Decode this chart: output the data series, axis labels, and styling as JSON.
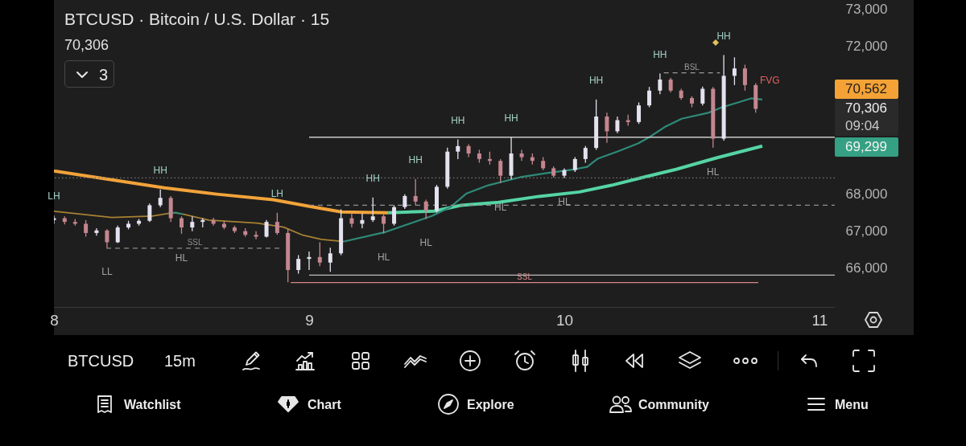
{
  "chart_data": {
    "type": "candlestick",
    "title": "BTCUSD · Bitcoin / U.S. Dollar · 15",
    "subtitle": "70,306",
    "x": [
      8,
      8.042,
      8.083,
      8.125,
      8.167,
      8.208,
      8.25,
      8.292,
      8.333,
      8.375,
      8.417,
      8.458,
      8.5,
      8.542,
      8.583,
      8.625,
      8.667,
      8.708,
      8.75,
      8.792,
      8.833,
      8.875,
      8.917,
      8.958,
      9,
      9.042,
      9.083,
      9.125,
      9.167,
      9.208,
      9.25,
      9.292,
      9.333,
      9.375,
      9.417,
      9.458,
      9.5,
      9.542,
      9.583,
      9.625,
      9.667,
      9.708,
      9.75,
      9.792,
      9.833,
      9.875,
      9.917,
      9.958,
      10,
      10.042,
      10.083,
      10.125,
      10.167,
      10.208,
      10.25,
      10.292,
      10.333,
      10.375,
      10.417,
      10.458,
      10.5,
      10.542,
      10.583,
      10.625,
      10.667,
      10.708,
      10.75
    ],
    "ohlc": [
      [
        67300,
        67420,
        67200,
        67350
      ],
      [
        67350,
        67400,
        67180,
        67250
      ],
      [
        67250,
        67330,
        67150,
        67200
      ],
      [
        67200,
        67300,
        66850,
        66950
      ],
      [
        66950,
        67080,
        66880,
        67020
      ],
      [
        67020,
        67050,
        66560,
        66700
      ],
      [
        66700,
        67150,
        66680,
        67100
      ],
      [
        67100,
        67280,
        67050,
        67200
      ],
      [
        67200,
        67330,
        67150,
        67280
      ],
      [
        67280,
        67750,
        67250,
        67700
      ],
      [
        67700,
        68130,
        67650,
        67900
      ],
      [
        67900,
        67950,
        67250,
        67350
      ],
      [
        67350,
        67400,
        66930,
        67100
      ],
      [
        67100,
        67400,
        67000,
        67250
      ],
      [
        67250,
        67350,
        67100,
        67300
      ],
      [
        67300,
        67360,
        67150,
        67200
      ],
      [
        67200,
        67280,
        67050,
        67100
      ],
      [
        67100,
        67150,
        66950,
        67000
      ],
      [
        67000,
        67080,
        66850,
        66900
      ],
      [
        66900,
        67000,
        66780,
        66850
      ],
      [
        66850,
        67300,
        66830,
        67250
      ],
      [
        67250,
        67500,
        66900,
        66950
      ],
      [
        66950,
        67050,
        65620,
        65950
      ],
      [
        65950,
        66350,
        65850,
        66250
      ],
      [
        66250,
        66450,
        65950,
        66300
      ],
      [
        66300,
        66700,
        66050,
        66150
      ],
      [
        66150,
        66550,
        65900,
        66400
      ],
      [
        66400,
        67590,
        66350,
        67350
      ],
      [
        67350,
        67500,
        67100,
        67200
      ],
      [
        67200,
        67480,
        67080,
        67300
      ],
      [
        67300,
        67910,
        67250,
        67400
      ],
      [
        67400,
        67450,
        66940,
        67200
      ],
      [
        67200,
        67700,
        67150,
        67650
      ],
      [
        67650,
        68000,
        67600,
        67950
      ],
      [
        67950,
        68410,
        67700,
        67800
      ],
      [
        67800,
        67850,
        67330,
        67550
      ],
      [
        67550,
        68250,
        67500,
        68200
      ],
      [
        68200,
        69260,
        68150,
        69150
      ],
      [
        69150,
        69480,
        68950,
        69300
      ],
      [
        69300,
        69350,
        69000,
        69100
      ],
      [
        69100,
        69200,
        68850,
        68950
      ],
      [
        68950,
        69150,
        68800,
        68900
      ],
      [
        68900,
        68950,
        68300,
        68500
      ],
      [
        68500,
        69540,
        68400,
        69100
      ],
      [
        69100,
        69200,
        68900,
        69000
      ],
      [
        69000,
        69100,
        68800,
        68900
      ],
      [
        68900,
        69000,
        68650,
        68700
      ],
      [
        68700,
        68750,
        68450,
        68500
      ],
      [
        68500,
        68700,
        68440,
        68650
      ],
      [
        68650,
        69000,
        68600,
        68950
      ],
      [
        68950,
        69300,
        68850,
        69250
      ],
      [
        69250,
        70560,
        69200,
        70100
      ],
      [
        70100,
        70200,
        69390,
        69700
      ],
      [
        69700,
        70100,
        69650,
        70000
      ],
      [
        70000,
        70150,
        69850,
        69950
      ],
      [
        69950,
        70480,
        69900,
        70400
      ],
      [
        70400,
        70900,
        70350,
        70800
      ],
      [
        70800,
        71260,
        70700,
        71100
      ],
      [
        71100,
        71150,
        70750,
        70800
      ],
      [
        70800,
        70850,
        70550,
        70600
      ],
      [
        70600,
        70650,
        70350,
        70450
      ],
      [
        70450,
        70910,
        70400,
        70850
      ],
      [
        70850,
        70900,
        69260,
        69500
      ],
      [
        69500,
        71760,
        69450,
        71200
      ],
      [
        71200,
        71700,
        70950,
        71400
      ],
      [
        71400,
        71500,
        70800,
        70950
      ],
      [
        70950,
        71000,
        70200,
        70306
      ]
    ],
    "colors": [
      "#e4e1f0",
      "#c4868f",
      "#c4868f",
      "#c4868f",
      "#e4e1f0",
      "#c4868f",
      "#e4e1f0",
      "#e4e1f0",
      "#e4e1f0",
      "#e4e1f0",
      "#e4e1f0",
      "#c4868f",
      "#c4868f",
      "#e4e1f0",
      "#e4e1f0",
      "#c4868f",
      "#c4868f",
      "#c4868f",
      "#c4868f",
      "#c4868f",
      "#e4e1f0",
      "#c4868f",
      "#c4868f",
      "#e4e1f0",
      "#e4e1f0",
      "#c4868f",
      "#e4e1f0",
      "#e4e1f0",
      "#c4868f",
      "#e4e1f0",
      "#e4e1f0",
      "#c4868f",
      "#e4e1f0",
      "#e4e1f0",
      "#c4868f",
      "#c4868f",
      "#e4e1f0",
      "#e4e1f0",
      "#e4e1f0",
      "#c4868f",
      "#c4868f",
      "#c4868f",
      "#c4868f",
      "#e4e1f0",
      "#c4868f",
      "#c4868f",
      "#c4868f",
      "#c4868f",
      "#e4e1f0",
      "#e4e1f0",
      "#e4e1f0",
      "#e4e1f0",
      "#c4868f",
      "#e4e1f0",
      "#c4868f",
      "#e4e1f0",
      "#e4e1f0",
      "#e4e1f0",
      "#c4868f",
      "#c4868f",
      "#c4868f",
      "#e4e1f0",
      "#c4868f",
      "#e4e1f0",
      "#e4e1f0",
      "#c4868f",
      "#c4868f"
    ],
    "series": [
      {
        "type": "line",
        "color": "#f2a33a",
        "x": [
          8,
          8.227,
          8.433,
          8.638,
          8.859,
          9.001,
          9.127,
          9.31
        ],
        "values": [
          68630,
          68390,
          68170,
          68000,
          67850,
          67670,
          67520,
          67500
        ]
      },
      {
        "type": "line",
        "color": "#55d4a4",
        "x": [
          9.31,
          9.49,
          9.595,
          9.743,
          9.901,
          10.059,
          10.185,
          10.311,
          10.438,
          10.596,
          10.776
        ],
        "values": [
          67500,
          67540,
          67700,
          67780,
          67940,
          68060,
          68240,
          68460,
          68670,
          68980,
          69300
        ]
      },
      {
        "type": "line",
        "color": "#a88033",
        "x": [
          8,
          8.227,
          8.385,
          8.448
        ],
        "values": [
          67540,
          67370,
          67410,
          67480
        ]
      },
      {
        "type": "line",
        "color": "#3c8c6e",
        "x": [
          8.448,
          8.476,
          8.505
        ],
        "values": [
          67480,
          67500,
          67460
        ]
      },
      {
        "type": "line",
        "color": "#a88033",
        "x": [
          8.505,
          8.606,
          8.796,
          8.9,
          8.976,
          9.048,
          9.137
        ],
        "values": [
          67460,
          67300,
          67220,
          67110,
          66890,
          66780,
          66720
        ]
      },
      {
        "type": "line",
        "color": "#2f8a78",
        "x": [
          9.137,
          9.301,
          9.481,
          9.554,
          9.617,
          9.702,
          9.828,
          9.932,
          10.037,
          10.09,
          10.131,
          10.207,
          10.289,
          10.333,
          10.397,
          10.46,
          10.564,
          10.618,
          10.681,
          10.731,
          10.776
        ],
        "values": [
          66720,
          66980,
          67410,
          67650,
          68020,
          68240,
          68460,
          68570,
          68670,
          68740,
          68960,
          69150,
          69370,
          69540,
          69830,
          70040,
          70200,
          70350,
          70480,
          70590,
          70560
        ]
      },
      {
        "type": "line",
        "name": "SSL",
        "color": "#8c8c8c",
        "line_style": "dashed",
        "x": [
          8.205,
          8.9
        ],
        "values": [
          66540,
          66540
        ]
      },
      {
        "type": "line",
        "color": "#c9c9c9",
        "x": [
          9,
          11.06
        ],
        "values": [
          69540,
          69540
        ]
      },
      {
        "type": "line",
        "color": "#8f8f8f",
        "line_style": "dashed",
        "x": [
          9,
          11.06
        ],
        "values": [
          67700,
          67700
        ]
      },
      {
        "type": "line",
        "color": "#bcbcbc",
        "x": [
          9,
          11.06
        ],
        "values": [
          65810,
          65810
        ]
      },
      {
        "type": "line",
        "name": "SSL",
        "color": "#d9898a",
        "x": [
          8.928,
          10.76
        ],
        "values": [
          65610,
          65610
        ]
      },
      {
        "type": "line",
        "name": "BSL",
        "color": "#9a9a9a",
        "line_style": "dashed",
        "x": [
          10.39,
          10.61
        ],
        "values": [
          71280,
          71280
        ]
      }
    ],
    "xlim": [
      8,
      11.06
    ],
    "xticks": [
      8,
      9,
      10,
      11
    ],
    "ylim": [
      64950,
      73250
    ],
    "yticks": [
      {
        "value": 66000,
        "label": "66,000"
      },
      {
        "value": 67000,
        "label": "67,000"
      },
      {
        "value": 68000,
        "label": "68,000"
      },
      {
        "value": 72000,
        "label": "72,000"
      },
      {
        "value": 73000,
        "label": "73,000"
      }
    ],
    "ref_lines": [
      {
        "axis": "y",
        "value": 68440,
        "color": "#777777",
        "line_style": "dotted"
      }
    ],
    "annotations": [
      {
        "text": "LH",
        "x": 8,
        "y": 67420
      },
      {
        "text": "HH",
        "x": 8.417,
        "y": 68130
      },
      {
        "text": "HL",
        "x": 8.5,
        "y": 66930
      },
      {
        "text": "LL",
        "x": 8.208,
        "y": 66560
      },
      {
        "text": "LH",
        "x": 8.875,
        "y": 67500
      },
      {
        "text": "HH",
        "x": 9.25,
        "y": 67910
      },
      {
        "text": "HL",
        "x": 9.292,
        "y": 66940
      },
      {
        "text": "HH",
        "x": 9.417,
        "y": 68410
      },
      {
        "text": "HL",
        "x": 9.458,
        "y": 67330
      },
      {
        "text": "HH",
        "x": 9.583,
        "y": 69480
      },
      {
        "text": "HL",
        "x": 9.75,
        "y": 68300
      },
      {
        "text": "HH",
        "x": 9.792,
        "y": 69540
      },
      {
        "text": "HL",
        "x": 10,
        "y": 68440
      },
      {
        "text": "HH",
        "x": 10.125,
        "y": 70560
      },
      {
        "text": "HH",
        "x": 10.375,
        "y": 71260
      },
      {
        "text": "HH",
        "x": 10.625,
        "y": 71760
      },
      {
        "text": "HL",
        "x": 10.583,
        "y": 69260
      },
      "70,562",
      "70,306",
      "09:04",
      "69,299",
      "3",
      "BTCUSD",
      "15m",
      "Watchlist",
      "Chart",
      "Explore",
      "Community",
      "Menu",
      "FVG"
    ]
  }
}
